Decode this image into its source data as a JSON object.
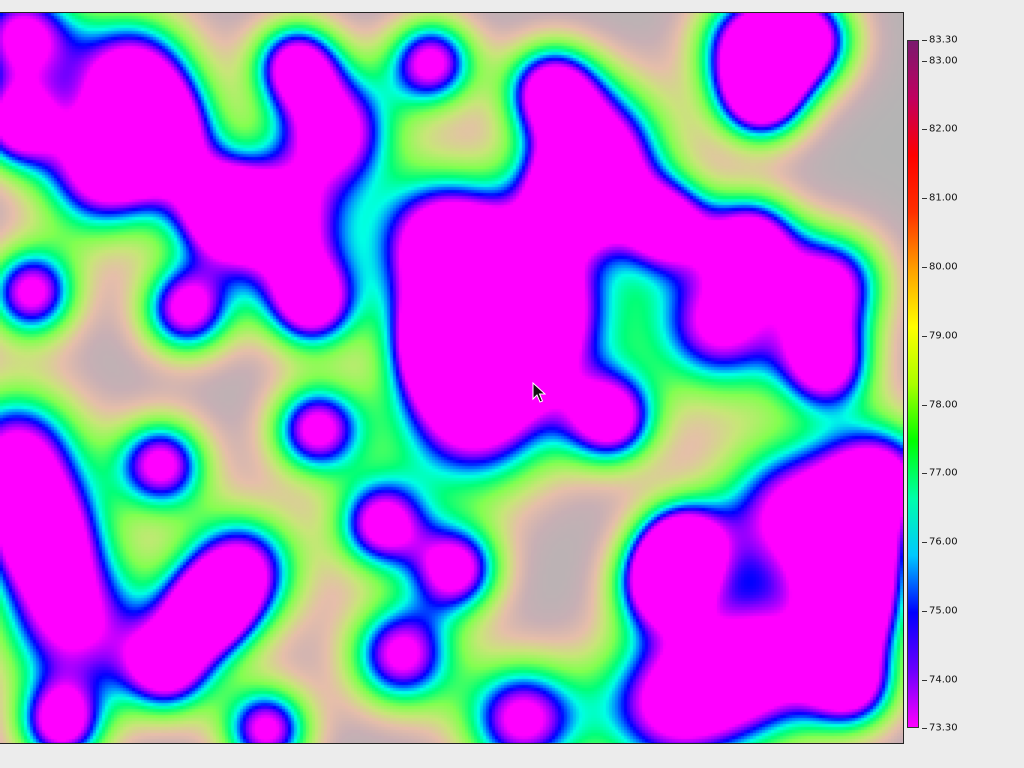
{
  "heatmap": {
    "background_color": "#b4b4b4",
    "colormap": [
      "#ff00ff",
      "#6a00ff",
      "#0000ff",
      "#00c8ff",
      "#00ffaa",
      "#00ff00",
      "#aaff00",
      "#ffff00",
      "#ffa000",
      "#ff3000",
      "#ff0000",
      "#c00060",
      "#7a1a6e"
    ]
  },
  "colorbar": {
    "min": 73.3,
    "max": 83.3,
    "min_label": "73.30",
    "max_label": "83.30",
    "ticks": [
      {
        "value": 83.0,
        "label": "83.00"
      },
      {
        "value": 82.0,
        "label": "82.00"
      },
      {
        "value": 81.0,
        "label": "81.00"
      },
      {
        "value": 80.0,
        "label": "80.00"
      },
      {
        "value": 79.0,
        "label": "79.00"
      },
      {
        "value": 78.0,
        "label": "78.00"
      },
      {
        "value": 77.0,
        "label": "77.00"
      },
      {
        "value": 76.0,
        "label": "76.00"
      },
      {
        "value": 75.0,
        "label": "75.00"
      },
      {
        "value": 74.0,
        "label": "74.00"
      }
    ]
  },
  "cursor": {
    "icon": "mouse-pointer-icon"
  }
}
